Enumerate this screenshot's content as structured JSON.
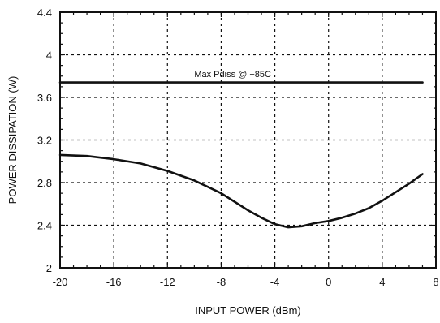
{
  "chart_data": {
    "type": "line",
    "xlabel": "INPUT POWER (dBm)",
    "ylabel": "POWER DISSIPATION (W)",
    "xlim": [
      -20,
      8
    ],
    "ylim": [
      2,
      4.4
    ],
    "x_ticks": [
      -20,
      -16,
      -12,
      -8,
      -4,
      0,
      4,
      8
    ],
    "y_ticks": [
      2,
      2.4,
      2.8,
      3.2,
      3.6,
      4,
      4.4
    ],
    "x_tick_labels": [
      "-20",
      "-16",
      "-12",
      "-8",
      "-4",
      "0",
      "4",
      "8"
    ],
    "y_tick_labels": [
      "2",
      "2.4",
      "2.8",
      "3.2",
      "3.6",
      "4",
      "4.4"
    ],
    "grid": true,
    "grid_style": "dotted",
    "series": [
      {
        "x": [
          -20,
          -18,
          -16,
          -14,
          -12,
          -10,
          -8,
          -6,
          -5,
          -4,
          -3,
          -2,
          -1,
          0,
          1,
          2,
          3,
          4,
          5,
          6,
          7
        ],
        "y": [
          3.06,
          3.05,
          3.02,
          2.98,
          2.91,
          2.82,
          2.7,
          2.54,
          2.47,
          2.41,
          2.38,
          2.39,
          2.42,
          2.44,
          2.47,
          2.51,
          2.56,
          2.63,
          2.71,
          2.79,
          2.88
        ]
      },
      {
        "x": [
          -20,
          7
        ],
        "y": [
          3.74,
          3.74
        ]
      }
    ],
    "annotations": [
      {
        "text": "Max Pdiss @ +85C",
        "x": -10,
        "y": 3.82
      }
    ],
    "line_color": "#111111"
  }
}
